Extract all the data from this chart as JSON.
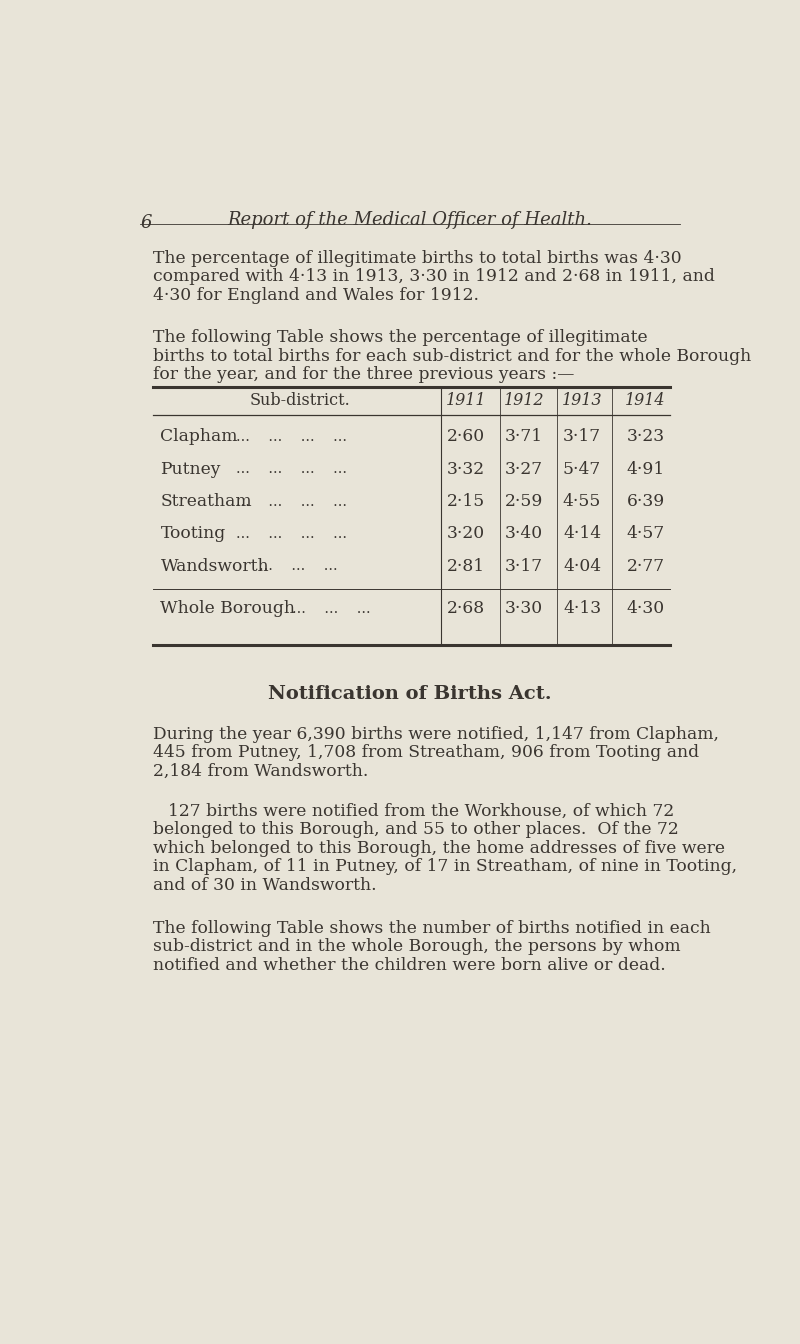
{
  "bg_color": "#e8e4d8",
  "text_color": "#3a3530",
  "page_number": "6",
  "header_text": "Report of the Medical Officer of Health.",
  "para1_lines": [
    "The percentage of illegitimate births to total births was 4·30",
    "compared with 4·13 in 1913, 3·30 in 1912 and 2·68 in 1911, and",
    "4·30 for England and Wales for 1912."
  ],
  "para2_lines": [
    "The following Table shows the percentage of illegitimate",
    "births to total births for each sub-district and for the whole Borough",
    "for the year, and for the three previous years :—"
  ],
  "table1_col_headers": [
    "Sub-district.",
    "1911",
    "1912",
    "1913",
    "1914"
  ],
  "table1_data": [
    [
      "Clapham",
      "2·60",
      "3·71",
      "3·17",
      "3·23"
    ],
    [
      "Putney",
      "3·32",
      "3·27",
      "5·47",
      "4·91"
    ],
    [
      "Streatham",
      "2·15",
      "2·59",
      "4·55",
      "6·39"
    ],
    [
      "Tooting",
      "3·20",
      "3·40",
      "4·14",
      "4·57"
    ],
    [
      "Wandsworth",
      "2·81",
      "3·17",
      "4·04",
      "2·77"
    ]
  ],
  "table1_footer_data": [
    "Whole Borough",
    "2·68",
    "3·30",
    "4·13",
    "4·30"
  ],
  "notification_heading": "Notification of Births Act.",
  "para3_lines": [
    "During the year 6,390 births were notified, 1,147 from Clapham,",
    "445 from Putney, 1,708 from Streatham, 906 from Tooting and",
    "2,184 from Wandsworth."
  ],
  "para4_lines": [
    "127 births were notified from the Workhouse, of which 72",
    "belonged to this Borough, and 55 to other places.  Of the 72",
    "which belonged to this Borough, the home addresses of five were",
    "in Clapham, of 11 in Putney, of 17 in Streatham, of nine in Tooting,",
    "and of 30 in Wandsworth."
  ],
  "para5_lines": [
    "The following Table shows the number of births notified in each",
    "sub-district and in the whole Borough, the persons by whom",
    "notified and whether the children were born alive or dead."
  ]
}
